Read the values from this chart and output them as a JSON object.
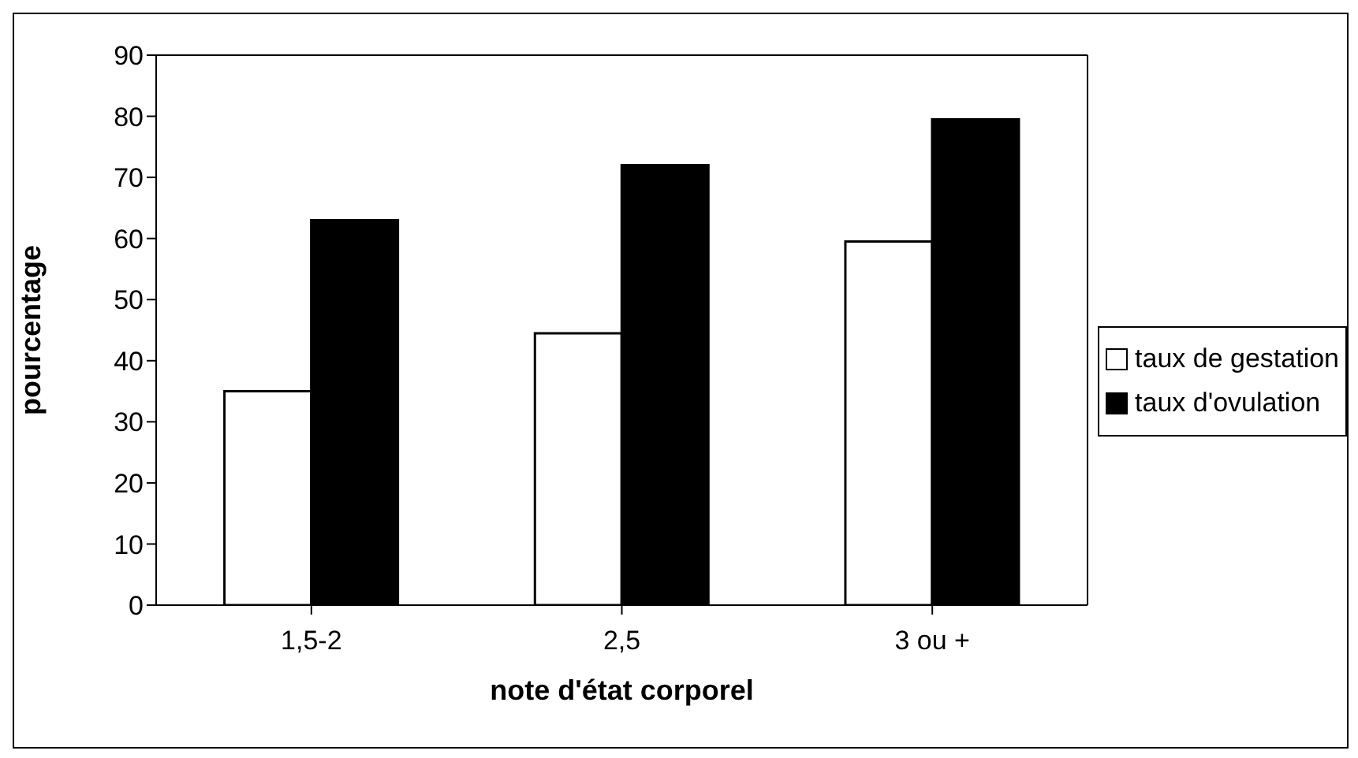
{
  "chart_data": {
    "type": "bar",
    "xlabel": "note d'état corporel",
    "ylabel": "pourcentage",
    "categories": [
      "1,5-2",
      "2,5",
      "3 ou +"
    ],
    "series": [
      {
        "name": "taux de gestation",
        "color": "#ffffff",
        "values": [
          35,
          44.5,
          59.5
        ]
      },
      {
        "name": "taux d'ovulation",
        "color": "#000000",
        "values": [
          63,
          72,
          79.5
        ]
      }
    ],
    "ylim": [
      0,
      90
    ],
    "yticks": [
      0,
      10,
      20,
      30,
      40,
      50,
      60,
      70,
      80,
      90
    ],
    "grid": false,
    "legend": "right"
  }
}
